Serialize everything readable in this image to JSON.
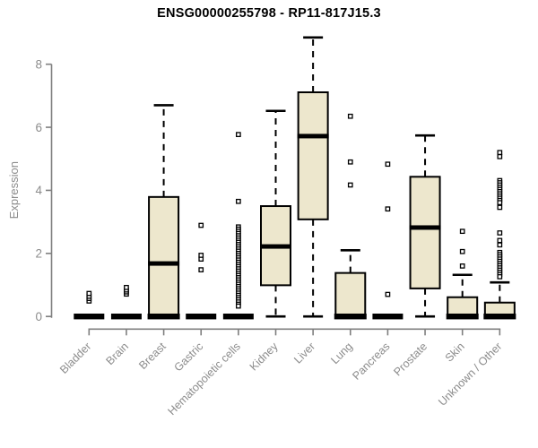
{
  "chart_data": {
    "type": "boxplot",
    "title": "ENSG00000255798 - RP11-817J15.3",
    "ylabel": "Expression",
    "xlabel": "",
    "yticks": [
      0,
      2,
      4,
      6,
      8
    ],
    "ylim": [
      0,
      8.9
    ],
    "grid": false,
    "legend": "none",
    "categories": [
      "Bladder",
      "Brain",
      "Breast",
      "Gastric",
      "Hematopoietic cells",
      "Kidney",
      "Liver",
      "Lung",
      "Pancreas",
      "Prostate",
      "Skin",
      "Unknown / Other"
    ],
    "boxes": [
      {
        "category": "Bladder",
        "whisker_low": 0,
        "q1": 0,
        "median": 0,
        "q3": 0,
        "whisker_high": 0,
        "outliers": [
          0.49,
          0.57,
          0.64,
          0.73
        ]
      },
      {
        "category": "Brain",
        "whisker_low": 0,
        "q1": 0,
        "median": 0,
        "q3": 0,
        "whisker_high": 0,
        "outliers": [
          0.71,
          0.78,
          0.84,
          0.92
        ]
      },
      {
        "category": "Breast",
        "whisker_low": 0,
        "q1": 0,
        "median": 1.68,
        "q3": 3.79,
        "whisker_high": 6.7,
        "outliers": []
      },
      {
        "category": "Gastric",
        "whisker_low": 0,
        "q1": 0,
        "median": 0,
        "q3": 0,
        "whisker_high": 0,
        "outliers": [
          1.48,
          1.82,
          1.94,
          2.89
        ]
      },
      {
        "category": "Hematopoietic cells",
        "whisker_low": 0,
        "q1": 0,
        "median": 0,
        "q3": 0,
        "whisker_high": 0,
        "outliers": [
          5.77,
          3.65,
          2.84,
          2.77,
          2.7,
          2.63,
          2.56,
          2.49,
          2.42,
          2.35,
          2.28,
          2.21,
          2.14,
          2.07,
          2.0,
          1.93,
          1.86,
          1.79,
          1.72,
          1.65,
          1.58,
          1.51,
          1.44,
          1.37,
          1.3,
          1.23,
          1.16,
          1.09,
          1.02,
          0.95,
          0.88,
          0.81,
          0.74,
          0.67,
          0.6,
          0.53,
          0.46,
          0.39,
          0.33
        ]
      },
      {
        "category": "Kidney",
        "whisker_low": 0,
        "q1": 0.99,
        "median": 2.22,
        "q3": 3.5,
        "whisker_high": 6.52,
        "outliers": []
      },
      {
        "category": "Liver",
        "whisker_low": 0,
        "q1": 3.08,
        "median": 5.72,
        "q3": 7.11,
        "whisker_high": 8.85,
        "outliers": []
      },
      {
        "category": "Lung",
        "whisker_low": 0,
        "q1": 0,
        "median": 0,
        "q3": 1.38,
        "whisker_high": 2.1,
        "outliers": [
          4.17,
          4.9,
          6.35
        ]
      },
      {
        "category": "Pancreas",
        "whisker_low": 0,
        "q1": 0,
        "median": 0,
        "q3": 0,
        "whisker_high": 0,
        "outliers": [
          0.7,
          3.41,
          4.83
        ]
      },
      {
        "category": "Prostate",
        "whisker_low": 0,
        "q1": 0.89,
        "median": 2.82,
        "q3": 4.43,
        "whisker_high": 5.74,
        "outliers": []
      },
      {
        "category": "Skin",
        "whisker_low": 0,
        "q1": 0,
        "median": 0,
        "q3": 0.61,
        "whisker_high": 1.32,
        "outliers": [
          1.6,
          2.06,
          2.7
        ]
      },
      {
        "category": "Unknown / Other",
        "whisker_low": 0,
        "q1": 0,
        "median": 0,
        "q3": 0.44,
        "whisker_high": 1.08,
        "outliers": [
          5.2,
          5.07,
          4.31,
          4.24,
          4.17,
          4.1,
          4.03,
          3.96,
          3.89,
          3.82,
          3.75,
          3.68,
          3.61,
          3.46,
          2.65,
          2.41,
          2.27,
          2.03,
          1.96,
          1.89,
          1.82,
          1.75,
          1.68,
          1.61,
          1.54,
          1.47,
          1.4,
          1.33,
          1.26
        ]
      }
    ],
    "colors": {
      "box_fill": "#EDE7CD",
      "box_border": "#000000",
      "median": "#000000",
      "whisker": "#000000",
      "outlier_stroke": "#000000",
      "axis": "#7F7F7F",
      "tick_label": "#8C8C8C",
      "title": "#000000",
      "background": "#FFFFFF"
    }
  }
}
